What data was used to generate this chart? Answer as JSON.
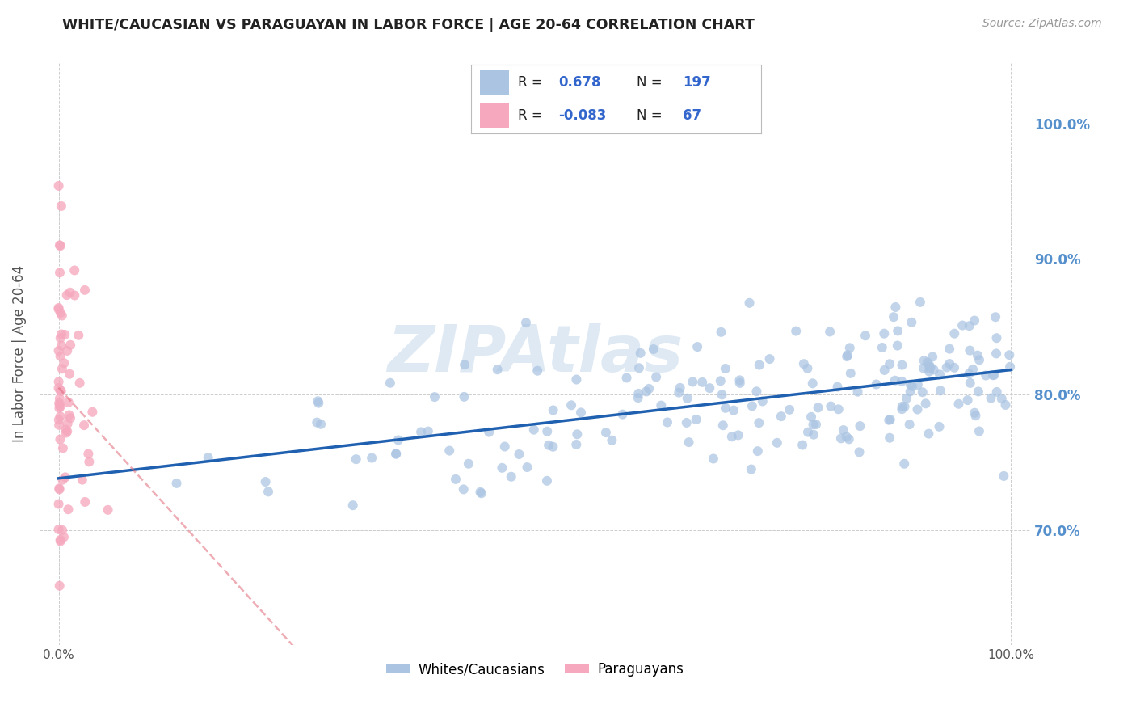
{
  "title": "WHITE/CAUCASIAN VS PARAGUAYAN IN LABOR FORCE | AGE 20-64 CORRELATION CHART",
  "source": "Source: ZipAtlas.com",
  "ylabel": "In Labor Force | Age 20-64",
  "xlim": [
    -0.02,
    1.02
  ],
  "ylim": [
    0.615,
    1.045
  ],
  "yticks": [
    0.7,
    0.8,
    0.9,
    1.0
  ],
  "ytick_labels": [
    "70.0%",
    "80.0%",
    "90.0%",
    "100.0%"
  ],
  "white_R": 0.678,
  "white_N": 197,
  "para_R": -0.083,
  "para_N": 67,
  "white_color": "#aac4e2",
  "para_color": "#f5a8be",
  "white_line_color": "#2060b0",
  "para_line_color": "#e06878",
  "watermark": "ZIPAtlas",
  "background_color": "#ffffff",
  "grid_color": "#c8c8c8",
  "title_color": "#222222",
  "right_tick_color": "#5590cc",
  "legend_color": "#3366cc",
  "legend_box_edge": "#bbbbbb"
}
